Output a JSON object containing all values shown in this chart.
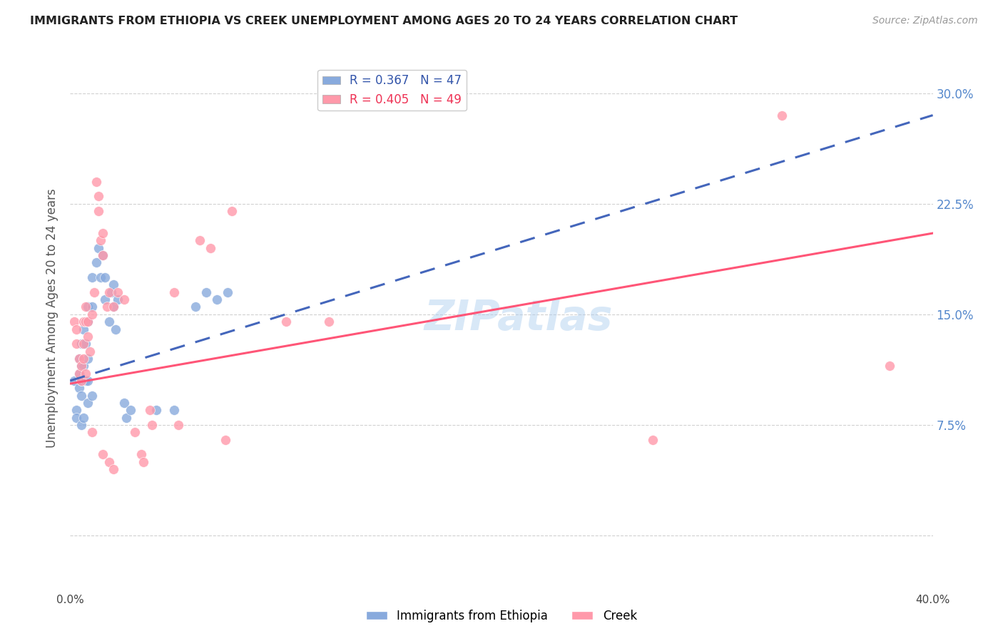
{
  "title": "IMMIGRANTS FROM ETHIOPIA VS CREEK UNEMPLOYMENT AMONG AGES 20 TO 24 YEARS CORRELATION CHART",
  "source": "Source: ZipAtlas.com",
  "ylabel": "Unemployment Among Ages 20 to 24 years",
  "xlim": [
    0.0,
    0.4
  ],
  "ylim": [
    -0.025,
    0.32
  ],
  "ytick_values": [
    0.0,
    0.075,
    0.15,
    0.225,
    0.3
  ],
  "ytick_labels": [
    "",
    "7.5%",
    "15.0%",
    "22.5%",
    "30.0%"
  ],
  "xtick_values": [
    0.0,
    0.05,
    0.1,
    0.15,
    0.2,
    0.25,
    0.3,
    0.35,
    0.4
  ],
  "legend_r_blue": "R = 0.367",
  "legend_n_blue": "N = 47",
  "legend_r_pink": "R = 0.405",
  "legend_n_pink": "N = 49",
  "label_blue": "Immigrants from Ethiopia",
  "label_pink": "Creek",
  "color_blue": "#88AADD",
  "color_pink": "#FF99AA",
  "color_line_blue": "#4466BB",
  "color_line_pink": "#FF5577",
  "watermark": "ZIPatlas",
  "blue_scatter_x": [
    0.002,
    0.003,
    0.003,
    0.004,
    0.004,
    0.004,
    0.005,
    0.005,
    0.005,
    0.005,
    0.005,
    0.006,
    0.006,
    0.006,
    0.006,
    0.007,
    0.007,
    0.007,
    0.008,
    0.008,
    0.008,
    0.008,
    0.008,
    0.01,
    0.01,
    0.01,
    0.012,
    0.013,
    0.014,
    0.015,
    0.016,
    0.016,
    0.018,
    0.019,
    0.02,
    0.02,
    0.021,
    0.022,
    0.025,
    0.026,
    0.028,
    0.04,
    0.048,
    0.058,
    0.063,
    0.068,
    0.073
  ],
  "blue_scatter_y": [
    0.105,
    0.085,
    0.08,
    0.12,
    0.11,
    0.1,
    0.13,
    0.115,
    0.105,
    0.095,
    0.075,
    0.14,
    0.13,
    0.115,
    0.08,
    0.145,
    0.13,
    0.105,
    0.155,
    0.145,
    0.12,
    0.105,
    0.09,
    0.175,
    0.155,
    0.095,
    0.185,
    0.195,
    0.175,
    0.19,
    0.175,
    0.16,
    0.145,
    0.165,
    0.17,
    0.155,
    0.14,
    0.16,
    0.09,
    0.08,
    0.085,
    0.085,
    0.085,
    0.155,
    0.165,
    0.16,
    0.165
  ],
  "pink_scatter_x": [
    0.002,
    0.003,
    0.003,
    0.004,
    0.004,
    0.005,
    0.005,
    0.006,
    0.006,
    0.006,
    0.007,
    0.007,
    0.007,
    0.008,
    0.008,
    0.009,
    0.01,
    0.01,
    0.011,
    0.012,
    0.013,
    0.013,
    0.014,
    0.015,
    0.015,
    0.015,
    0.017,
    0.018,
    0.018,
    0.02,
    0.02,
    0.022,
    0.025,
    0.03,
    0.033,
    0.034,
    0.037,
    0.038,
    0.048,
    0.05,
    0.06,
    0.065,
    0.072,
    0.075,
    0.1,
    0.12,
    0.27,
    0.33,
    0.38
  ],
  "pink_scatter_y": [
    0.145,
    0.14,
    0.13,
    0.12,
    0.11,
    0.115,
    0.105,
    0.145,
    0.13,
    0.12,
    0.155,
    0.145,
    0.11,
    0.145,
    0.135,
    0.125,
    0.15,
    0.07,
    0.165,
    0.24,
    0.23,
    0.22,
    0.2,
    0.205,
    0.19,
    0.055,
    0.155,
    0.165,
    0.05,
    0.155,
    0.045,
    0.165,
    0.16,
    0.07,
    0.055,
    0.05,
    0.085,
    0.075,
    0.165,
    0.075,
    0.2,
    0.195,
    0.065,
    0.22,
    0.145,
    0.145,
    0.065,
    0.285,
    0.115
  ],
  "blue_trend": [
    0.0,
    0.105,
    0.4,
    0.285
  ],
  "pink_trend": [
    0.0,
    0.103,
    0.4,
    0.205
  ]
}
